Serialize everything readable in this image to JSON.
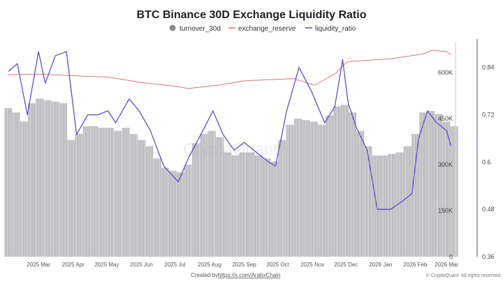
{
  "chart_data": {
    "type": "bar+line",
    "title": "BTC Binance 30D Exchange Liquidity Ratio",
    "start_date": "2025-02-02",
    "x_unit": "days since start_date",
    "x_range": [
      0,
      400
    ],
    "legend": {
      "placement": "top-center",
      "items": [
        {
          "name": "turnover_30d",
          "color": "#8a8a8e",
          "shape": "dot"
        },
        {
          "name": "exchange_reserve",
          "color": "#d9777e",
          "shape": "line"
        },
        {
          "name": "liquidity_ratio",
          "color": "#5b4fd1",
          "shape": "line"
        }
      ]
    },
    "x_ticks": [
      {
        "label": "2025 Mar",
        "day": 27
      },
      {
        "label": "2025 Apr",
        "day": 58
      },
      {
        "label": "2025 May",
        "day": 88
      },
      {
        "label": "2025 Jun",
        "day": 119
      },
      {
        "label": "2025 Jul",
        "day": 149
      },
      {
        "label": "2025 Aug",
        "day": 180
      },
      {
        "label": "2025 Sep",
        "day": 211
      },
      {
        "label": "2025 Oct",
        "day": 241
      },
      {
        "label": "2025 Nov",
        "day": 272
      },
      {
        "label": "2025 Dec",
        "day": 302
      },
      {
        "label": "2026 Jan",
        "day": 333
      },
      {
        "label": "2026 Feb",
        "day": 364
      },
      {
        "label": "2026 Mar",
        "day": 392
      }
    ],
    "left_axis": {
      "range": [
        0,
        700000
      ],
      "ticks": [
        0,
        150000,
        300000,
        450000,
        600000
      ],
      "tick_labels": [
        "0",
        "150K",
        "300K",
        "450K",
        "600K"
      ]
    },
    "right_axis": {
      "range": [
        0.36,
        0.905
      ],
      "ticks": [
        0.36,
        0.48,
        0.6,
        0.72,
        0.84
      ],
      "tick_labels": [
        "0.36",
        "0.48",
        "0.6",
        "0.72",
        "0.84"
      ]
    },
    "series": [
      {
        "name": "turnover_30d",
        "type": "bar",
        "axis": "left",
        "step_days": 7,
        "values": [
          484000,
          470000,
          440000,
          500000,
          515000,
          510000,
          505000,
          500000,
          380000,
          400000,
          425000,
          425000,
          420000,
          420000,
          410000,
          420000,
          400000,
          380000,
          360000,
          320000,
          290000,
          280000,
          275000,
          300000,
          370000,
          400000,
          410000,
          390000,
          340000,
          330000,
          340000,
          340000,
          330000,
          320000,
          310000,
          380000,
          430000,
          450000,
          445000,
          440000,
          430000,
          460000,
          490000,
          495000,
          470000,
          410000,
          360000,
          330000,
          330000,
          335000,
          340000,
          360000,
          400000,
          470000,
          475000,
          465000,
          440000,
          425000
        ]
      },
      {
        "name": "exchange_reserve",
        "type": "line",
        "axis": "left",
        "x": [
          0,
          30,
          55,
          90,
          118,
          150,
          161,
          190,
          211,
          240,
          255,
          274,
          293,
          300,
          304,
          330,
          342,
          370,
          380,
          392,
          396
        ],
        "values": [
          593000,
          595000,
          590000,
          585000,
          568000,
          555000,
          548000,
          560000,
          573000,
          578000,
          580000,
          559000,
          598000,
          625000,
          636000,
          642000,
          645000,
          660000,
          673000,
          668000,
          659000
        ]
      },
      {
        "name": "liquidity_ratio",
        "type": "line",
        "axis": "right",
        "x": [
          0,
          8,
          17,
          27,
          33,
          42,
          52,
          61,
          71,
          80,
          89,
          96,
          108,
          117,
          127,
          139,
          152,
          161,
          174,
          183,
          192,
          202,
          211,
          224,
          233,
          239,
          249,
          260,
          271,
          283,
          292,
          299,
          304,
          311,
          321,
          330,
          342,
          352,
          361,
          367,
          375,
          383,
          392,
          396
        ],
        "values": [
          0.83,
          0.85,
          0.72,
          0.88,
          0.8,
          0.87,
          0.88,
          0.67,
          0.72,
          0.72,
          0.73,
          0.7,
          0.76,
          0.73,
          0.68,
          0.59,
          0.55,
          0.61,
          0.68,
          0.73,
          0.67,
          0.63,
          0.65,
          0.62,
          0.6,
          0.59,
          0.73,
          0.84,
          0.78,
          0.7,
          0.74,
          0.86,
          0.75,
          0.69,
          0.63,
          0.48,
          0.48,
          0.5,
          0.52,
          0.66,
          0.73,
          0.7,
          0.68,
          0.64
        ]
      }
    ],
    "footer": {
      "created_by_label": "Created by:",
      "created_by_link": "https://x.com/ArabxChain",
      "copyright": "© CryptoQuant. All rights reserved"
    },
    "watermark": "CryptoQuant"
  }
}
